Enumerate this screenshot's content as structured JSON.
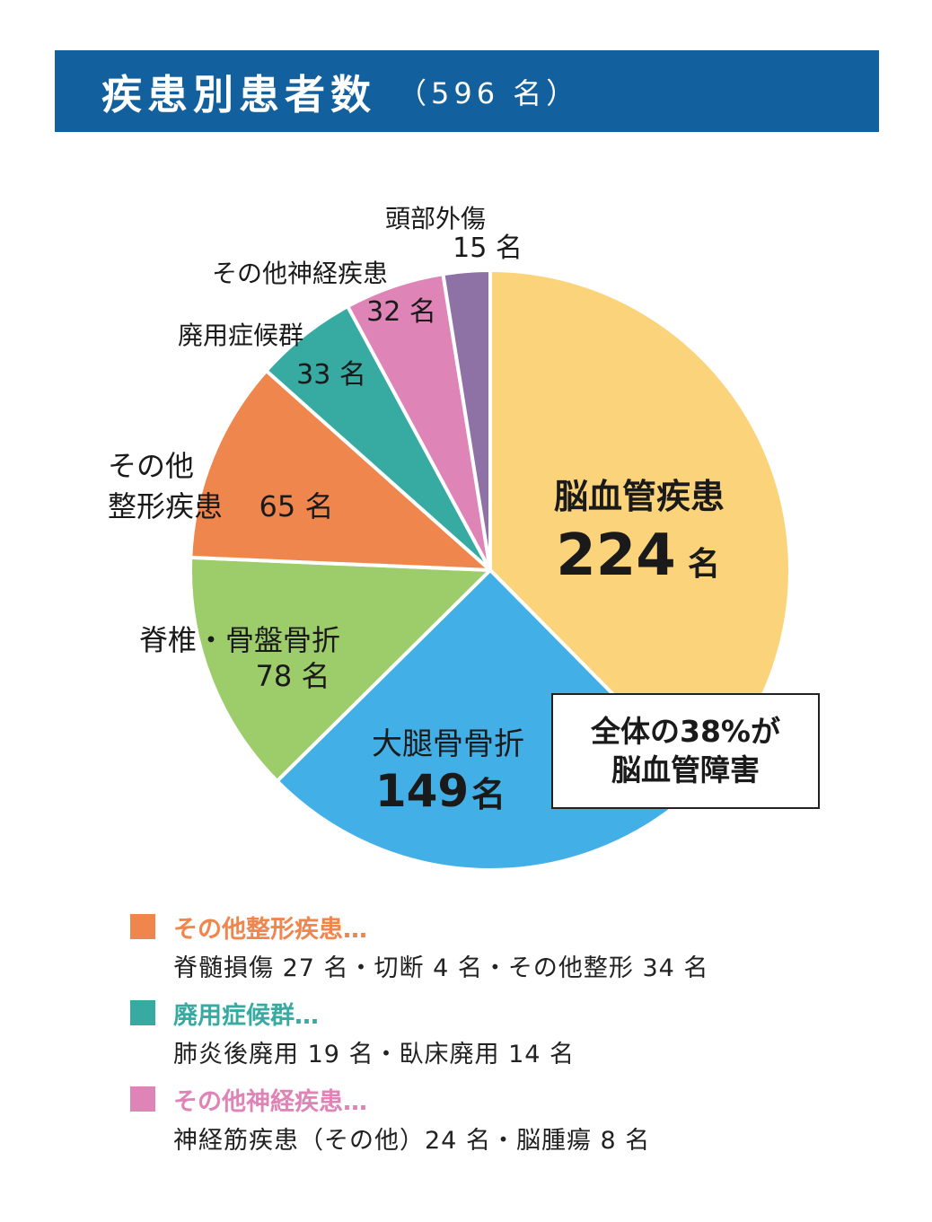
{
  "header": {
    "title": "疾患別患者数",
    "subtitle": "（596 名）"
  },
  "chart_data": {
    "type": "pie",
    "title": "疾患別患者数（596 名）",
    "total": 596,
    "unit": "名",
    "slices": [
      {
        "label": "脳血管疾患",
        "value": 224,
        "value_text": "224",
        "unit": "名",
        "color": "#fbd37a"
      },
      {
        "label": "大腿骨骨折",
        "value": 149,
        "value_text": "149",
        "unit": "名",
        "color": "#42b0e6"
      },
      {
        "label": "脊椎・骨盤骨折",
        "value": 78,
        "value_text": "78 名",
        "color": "#9dcc6b"
      },
      {
        "label_lines": [
          "その他",
          "整形疾患"
        ],
        "value": 65,
        "value_text": "65 名",
        "color": "#ef864d"
      },
      {
        "label": "廃用症候群",
        "value": 33,
        "value_text": "33 名",
        "color": "#37aba2"
      },
      {
        "label": "その他神経疾患",
        "value": 32,
        "value_text": "32 名",
        "color": "#de84b6"
      },
      {
        "label": "頭部外傷",
        "value": 15,
        "value_text": "15 名",
        "color": "#8e72a5"
      }
    ],
    "annotation": [
      "全体の38%が",
      "脳血管障害"
    ]
  },
  "legend": [
    {
      "title": "その他整形疾患…",
      "color": "#ef864d",
      "detail": "脊髄損傷 27 名・切断 4 名・その他整形 34 名"
    },
    {
      "title": "廃用症候群…",
      "color": "#37aba2",
      "detail": "肺炎後廃用 19 名・臥床廃用 14 名"
    },
    {
      "title": "その他神経疾患…",
      "color": "#de84b6",
      "detail": "神経筋疾患（その他）24 名・脳腫瘍 8 名"
    }
  ]
}
